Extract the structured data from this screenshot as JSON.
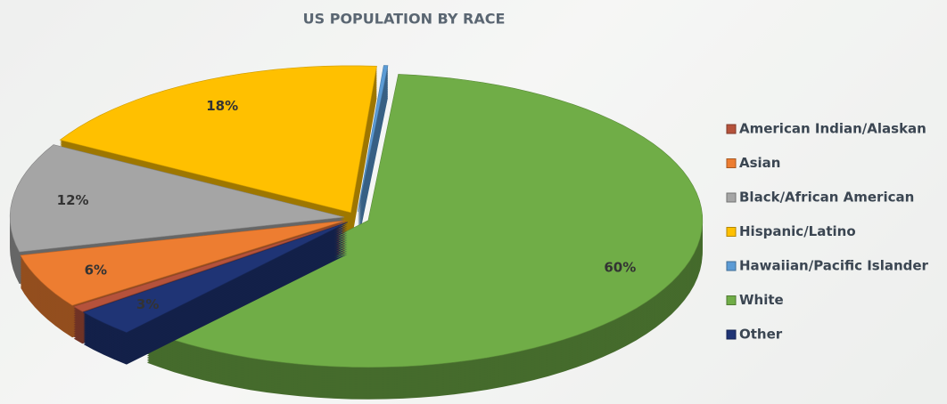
{
  "chart_data": {
    "type": "pie3d",
    "title": "US POPULATION BY RACE",
    "categories": [
      "American Indian/Alaskan",
      "Asian",
      "Black/African American",
      "Hispanic/Latino",
      "Hawaiian/Pacific Islander",
      "White",
      "Other"
    ],
    "values": [
      0.7,
      6,
      12,
      18,
      0.2,
      60,
      3
    ],
    "value_labels": [
      null,
      "6%",
      "12%",
      "18%",
      null,
      "60%",
      "3%"
    ],
    "colors": [
      "#b5523b",
      "#ed7d31",
      "#a5a5a5",
      "#ffc000",
      "#5b9bd5",
      "#70ad47",
      "#1f3475"
    ],
    "legend": "right"
  }
}
